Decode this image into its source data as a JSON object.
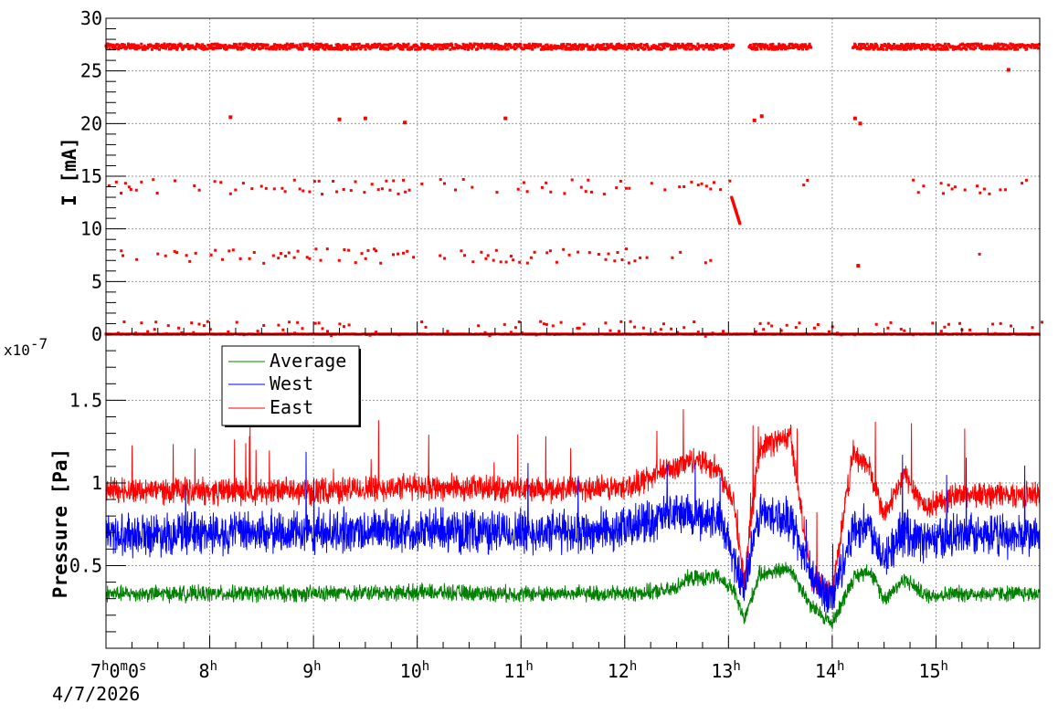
{
  "chart_data": [
    {
      "type": "scatter",
      "ylabel": "I [mA]",
      "ylim": [
        0,
        30
      ],
      "yticks": [
        "0",
        "5",
        "10",
        "15",
        "20",
        "25",
        "30"
      ],
      "x_range_hours": [
        7,
        16
      ],
      "grid": true,
      "series": [
        {
          "color": "#ff0000",
          "bands": [
            {
              "level": 27.3,
              "segments": [
                [
                  7.0,
                  13.05
                ],
                [
                  13.2,
                  13.8
                ],
                [
                  14.2,
                  16.0
                ]
              ]
            },
            {
              "level": 14.0,
              "sparse": true,
              "segments": [
                [
                  7.0,
                  13.0
                ],
                [
                  13.7,
                  13.75
                ],
                [
                  14.7,
                  15.95
                ]
              ]
            },
            {
              "level": 7.4,
              "sparse": true,
              "segments": [
                [
                  7.0,
                  12.8
                ],
                [
                  15.4,
                  15.5
                ]
              ]
            },
            {
              "level": 0.5,
              "sparse": true,
              "segments": [
                [
                  7.0,
                  16.0
                ]
              ]
            },
            {
              "level": 0.0,
              "segments": [
                [
                  7.0,
                  16.0
                ]
              ]
            }
          ],
          "ramp": {
            "x": [
              13.03,
              13.11
            ],
            "y": [
              13.0,
              10.5
            ]
          },
          "outliers": [
            [
              8.2,
              20.6
            ],
            [
              9.25,
              20.4
            ],
            [
              9.5,
              20.5
            ],
            [
              9.88,
              20.1
            ],
            [
              10.85,
              20.5
            ],
            [
              13.25,
              20.3
            ],
            [
              13.32,
              20.7
            ],
            [
              14.22,
              20.5
            ],
            [
              14.27,
              20.0
            ],
            [
              14.25,
              6.5
            ],
            [
              15.7,
              25.1
            ]
          ]
        }
      ]
    },
    {
      "type": "line",
      "ylabel": "Pressure [Pa]",
      "yscale_label": "x10",
      "yscale_exp": "-7",
      "ylim": [
        0.0,
        1.9
      ],
      "yticks": [
        "0.5",
        "1",
        "1.5"
      ],
      "x_range_hours": [
        7,
        16
      ],
      "grid": true,
      "legend_position": "top-left",
      "series": [
        {
          "name": "Average",
          "color": "#008000",
          "x": [
            7.0,
            8.0,
            9.0,
            10.0,
            11.0,
            12.0,
            12.45,
            12.6,
            12.9,
            13.05,
            13.15,
            13.3,
            13.6,
            13.8,
            14.0,
            14.2,
            14.35,
            14.5,
            14.7,
            14.9,
            15.2,
            16.0
          ],
          "y": [
            0.33,
            0.33,
            0.33,
            0.34,
            0.33,
            0.33,
            0.35,
            0.42,
            0.43,
            0.35,
            0.17,
            0.45,
            0.48,
            0.25,
            0.15,
            0.42,
            0.48,
            0.3,
            0.42,
            0.32,
            0.33,
            0.33
          ]
        },
        {
          "name": "West",
          "color": "#0000ff",
          "x": [
            7.0,
            8.0,
            9.0,
            10.0,
            11.0,
            12.0,
            12.5,
            12.7,
            12.9,
            13.05,
            13.15,
            13.3,
            13.6,
            13.8,
            14.0,
            14.2,
            14.35,
            14.5,
            14.7,
            14.9,
            15.2,
            16.0
          ],
          "y": [
            0.69,
            0.7,
            0.7,
            0.72,
            0.7,
            0.72,
            0.82,
            0.8,
            0.78,
            0.55,
            0.36,
            0.82,
            0.78,
            0.42,
            0.3,
            0.72,
            0.75,
            0.55,
            0.7,
            0.65,
            0.68,
            0.68
          ]
        },
        {
          "name": "East",
          "color": "#ff0000",
          "x": [
            7.0,
            8.0,
            9.0,
            10.0,
            11.0,
            12.0,
            12.5,
            12.7,
            12.9,
            13.05,
            13.15,
            13.3,
            13.6,
            13.8,
            14.0,
            14.2,
            14.35,
            14.5,
            14.7,
            14.9,
            15.2,
            16.0
          ],
          "y": [
            0.96,
            0.95,
            0.95,
            0.98,
            0.96,
            0.97,
            1.1,
            1.15,
            1.08,
            0.9,
            0.4,
            1.22,
            1.28,
            0.4,
            0.33,
            1.18,
            1.1,
            0.8,
            1.05,
            0.85,
            0.93,
            0.93
          ]
        }
      ]
    }
  ],
  "x_axis": {
    "first_label": {
      "base": "7",
      "parts": [
        [
          "h",
          "0"
        ],
        [
          "m",
          "0"
        ],
        [
          "s",
          ""
        ]
      ]
    },
    "hour_labels": [
      "8",
      "9",
      "10",
      "11",
      "12",
      "13",
      "14",
      "15"
    ],
    "hour_suffix": "h",
    "date": "4/7/2026"
  }
}
